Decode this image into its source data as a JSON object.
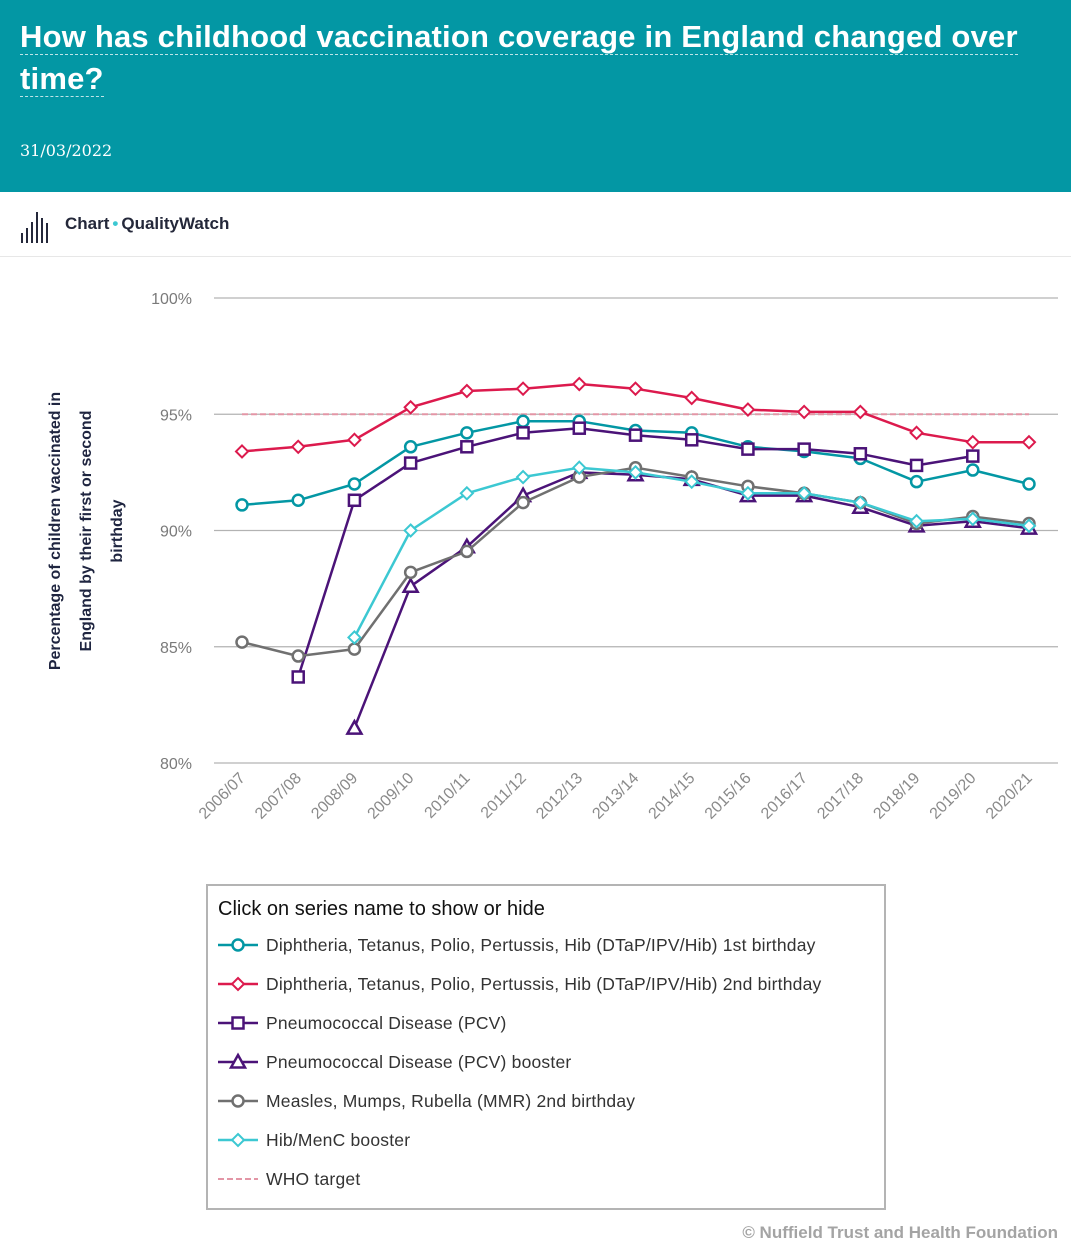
{
  "header": {
    "title": "How has childhood vaccination coverage in England changed over time?",
    "date": "31/03/2022",
    "background_color": "#0397a4"
  },
  "brand": {
    "icon": "bar-chart-icon",
    "chart_label": "Chart",
    "separator": "•",
    "org_label": "QualityWatch"
  },
  "chart_data": {
    "type": "line",
    "ylabel": "Percentage of children vaccinated in England by their first or second birthday",
    "xlabel": "",
    "ylim": [
      80,
      100
    ],
    "yticks": [
      {
        "value": 80,
        "label": "80%"
      },
      {
        "value": 85,
        "label": "85%"
      },
      {
        "value": 90,
        "label": "90%"
      },
      {
        "value": 95,
        "label": "95%"
      },
      {
        "value": 100,
        "label": "100%"
      }
    ],
    "categories": [
      "2006/07",
      "2007/08",
      "2008/09",
      "2009/10",
      "2010/11",
      "2011/12",
      "2012/13",
      "2013/14",
      "2014/15",
      "2015/16",
      "2016/17",
      "2017/18",
      "2018/19",
      "2019/20",
      "2020/21"
    ],
    "grid": "horizontal",
    "series": [
      {
        "name": "Diphtheria, Tetanus, Polio, Pertussis, Hib (DTaP/IPV/Hib) 1st birthday",
        "color": "#0397a4",
        "marker": "circle",
        "values": [
          91.1,
          91.3,
          92.0,
          93.6,
          94.2,
          94.7,
          94.7,
          94.3,
          94.2,
          93.6,
          93.4,
          93.1,
          92.1,
          92.6,
          92.0
        ]
      },
      {
        "name": "Diphtheria, Tetanus, Polio, Pertussis, Hib (DTaP/IPV/Hib) 2nd birthday",
        "color": "#dc1a4d",
        "marker": "diamond",
        "values": [
          93.4,
          93.6,
          93.9,
          95.3,
          96.0,
          96.1,
          96.3,
          96.1,
          95.7,
          95.2,
          95.1,
          95.1,
          94.2,
          93.8,
          93.8
        ]
      },
      {
        "name": "Pneumococcal Disease (PCV)",
        "color": "#4b1378",
        "marker": "square",
        "values": [
          null,
          83.7,
          91.3,
          92.9,
          93.6,
          94.2,
          94.4,
          94.1,
          93.9,
          93.5,
          93.5,
          93.3,
          92.8,
          93.2,
          null
        ]
      },
      {
        "name": "Pneumococcal Disease (PCV) booster",
        "color": "#4b1378",
        "marker": "triangle",
        "values": [
          null,
          null,
          81.5,
          87.6,
          89.3,
          91.5,
          92.5,
          92.4,
          92.2,
          91.5,
          91.5,
          91.0,
          90.2,
          90.4,
          90.1
        ]
      },
      {
        "name": "Measles, Mumps, Rubella (MMR) 2nd birthday",
        "color": "#707070",
        "marker": "circle",
        "values": [
          85.2,
          84.6,
          84.9,
          88.2,
          89.1,
          91.2,
          92.3,
          92.7,
          92.3,
          91.9,
          91.6,
          91.2,
          90.3,
          90.6,
          90.3
        ]
      },
      {
        "name": "Hib/MenC booster",
        "color": "#3cc8d2",
        "marker": "diamond",
        "values": [
          null,
          null,
          85.4,
          90.0,
          91.6,
          92.3,
          92.7,
          92.5,
          92.1,
          91.6,
          91.6,
          91.2,
          90.4,
          90.5,
          90.2
        ]
      },
      {
        "name": "WHO target",
        "color": "#e396a6",
        "marker": "none",
        "dashed": true,
        "values": [
          95,
          95,
          95,
          95,
          95,
          95,
          95,
          95,
          95,
          95,
          95,
          95,
          95,
          95,
          95
        ]
      }
    ]
  },
  "legend": {
    "title": "Click on series name to show or hide",
    "items": [
      "Diphtheria, Tetanus, Polio, Pertussis, Hib (DTaP/IPV/Hib) 1st birthday",
      "Diphtheria, Tetanus, Polio, Pertussis, Hib (DTaP/IPV/Hib) 2nd birthday",
      "Pneumococcal Disease (PCV)",
      "Pneumococcal Disease (PCV) booster",
      "Measles, Mumps, Rubella (MMR) 2nd birthday",
      "Hib/MenC booster",
      "WHO target"
    ]
  },
  "footer": {
    "credit": "© Nuffield Trust and Health Foundation"
  }
}
